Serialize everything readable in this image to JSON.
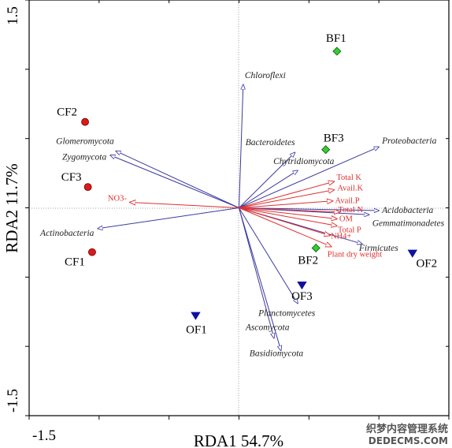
{
  "chart_data": {
    "type": "scatter",
    "subtype": "rda-biplot",
    "xlabel": "RDA1 54.7%",
    "ylabel": "RDA2 11.7%",
    "xlim": [
      -1.5,
      1.5
    ],
    "ylim": [
      -1.5,
      1.5
    ],
    "x_tick_labels": [
      "-1.5"
    ],
    "y_tick_labels": [
      "1.5",
      "-1.5"
    ],
    "grid": false,
    "colors": {
      "species_arrow": "#3a3aa0",
      "env_arrow": "#e03030",
      "env_text": "#e03030",
      "cf_marker": "#e01818",
      "bf_marker": "#33cc33",
      "of_marker": "#1010a0"
    },
    "samples": [
      {
        "name": "CF1",
        "x": -1.05,
        "y": -0.32,
        "marker": "circle",
        "group": "CF"
      },
      {
        "name": "CF2",
        "x": -1.1,
        "y": 0.62,
        "marker": "circle",
        "group": "CF"
      },
      {
        "name": "CF3",
        "x": -1.08,
        "y": 0.15,
        "marker": "circle",
        "group": "CF"
      },
      {
        "name": "BF1",
        "x": 0.7,
        "y": 1.13,
        "marker": "diamond",
        "group": "BF"
      },
      {
        "name": "BF2",
        "x": 0.55,
        "y": -0.29,
        "marker": "diamond",
        "group": "BF"
      },
      {
        "name": "BF3",
        "x": 0.62,
        "y": 0.42,
        "marker": "diamond",
        "group": "BF"
      },
      {
        "name": "OF1",
        "x": -0.31,
        "y": -0.78,
        "marker": "triangle-down",
        "group": "OF"
      },
      {
        "name": "OF2",
        "x": 1.24,
        "y": -0.33,
        "marker": "triangle-down",
        "group": "OF"
      },
      {
        "name": "OF3",
        "x": 0.45,
        "y": -0.56,
        "marker": "triangle-down",
        "group": "OF"
      }
    ],
    "species": [
      {
        "name": "Chloroflexi",
        "x": 0.03,
        "y": 0.89
      },
      {
        "name": "Proteobacteria",
        "x": 1.0,
        "y": 0.44
      },
      {
        "name": "Bacteroidetes",
        "x": 0.4,
        "y": 0.4
      },
      {
        "name": "Chytridiomycota",
        "x": 0.42,
        "y": 0.27
      },
      {
        "name": "Acidobacteria",
        "x": 1.0,
        "y": -0.02
      },
      {
        "name": "Gemmatimonadetes",
        "x": 0.93,
        "y": -0.05
      },
      {
        "name": "Firmicutes",
        "x": 0.88,
        "y": -0.26
      },
      {
        "name": "Planctomycetes",
        "x": 0.42,
        "y": -0.69
      },
      {
        "name": "Ascomycota",
        "x": 0.25,
        "y": -0.94
      },
      {
        "name": "Basidiomycota",
        "x": 0.3,
        "y": -1.03
      },
      {
        "name": "Glomeromycota",
        "x": -0.88,
        "y": 0.41
      },
      {
        "name": "Zygomycota",
        "x": -0.92,
        "y": 0.38
      },
      {
        "name": "Actinobacteria",
        "x": -1.01,
        "y": -0.15
      }
    ],
    "environment": [
      {
        "name": "Total K",
        "x": 0.68,
        "y": 0.19
      },
      {
        "name": "Avail.K",
        "x": 0.68,
        "y": 0.13
      },
      {
        "name": "Avail.P",
        "x": 0.67,
        "y": 0.05
      },
      {
        "name": "Total N",
        "x": 0.72,
        "y": -0.03
      },
      {
        "name": "OM",
        "x": 0.7,
        "y": -0.08
      },
      {
        "name": "Total P",
        "x": 0.7,
        "y": -0.13
      },
      {
        "name": "NH4+",
        "x": 0.65,
        "y": -0.2
      },
      {
        "name": "Plant dry weight",
        "x": 0.66,
        "y": -0.28
      },
      {
        "name": "NO3-",
        "x": -0.78,
        "y": 0.04
      }
    ]
  },
  "watermark": {
    "line1": "织梦内容管理系统",
    "line2": "DEDECMS.COM"
  }
}
